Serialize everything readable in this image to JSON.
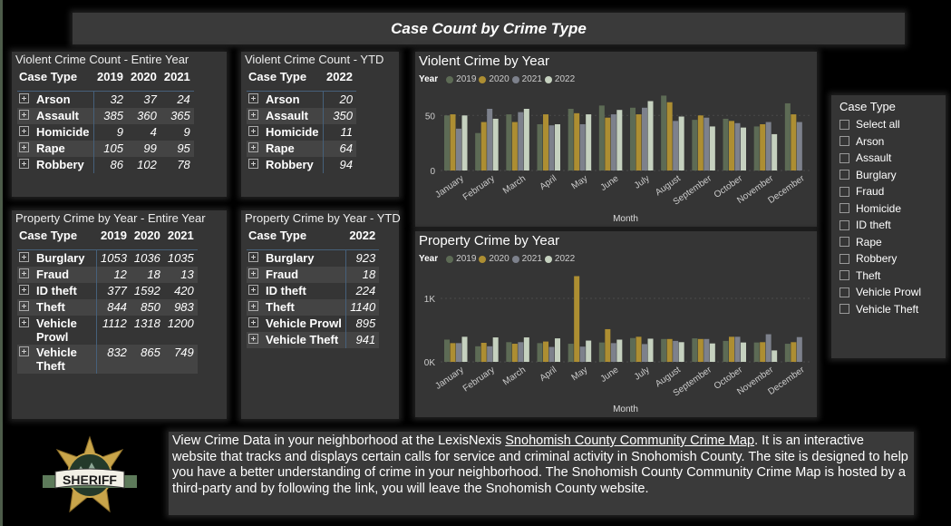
{
  "title": "Case Count by Crime Type",
  "violent_entire": {
    "title": "Violent Crime Count - Entire Year",
    "headers": [
      "Case Type",
      "2019",
      "2020",
      "2021"
    ],
    "rows": [
      [
        "Arson",
        "32",
        "37",
        "24"
      ],
      [
        "Assault",
        "385",
        "360",
        "365"
      ],
      [
        "Homicide",
        "9",
        "4",
        "9"
      ],
      [
        "Rape",
        "105",
        "99",
        "95"
      ],
      [
        "Robbery",
        "86",
        "102",
        "78"
      ]
    ]
  },
  "violent_ytd": {
    "title": "Violent Crime Count - YTD",
    "headers": [
      "Case Type",
      "2022"
    ],
    "rows": [
      [
        "Arson",
        "20"
      ],
      [
        "Assault",
        "350"
      ],
      [
        "Homicide",
        "11"
      ],
      [
        "Rape",
        "64"
      ],
      [
        "Robbery",
        "94"
      ]
    ]
  },
  "property_entire": {
    "title": "Property Crime by Year - Entire Year",
    "headers": [
      "Case Type",
      "2019",
      "2020",
      "2021"
    ],
    "rows": [
      [
        "Burglary",
        "1053",
        "1036",
        "1035"
      ],
      [
        "Fraud",
        "12",
        "18",
        "13"
      ],
      [
        "ID theft",
        "377",
        "1592",
        "420"
      ],
      [
        "Theft",
        "844",
        "850",
        "983"
      ],
      [
        "Vehicle Prowl",
        "1112",
        "1318",
        "1200"
      ],
      [
        "Vehicle Theft",
        "832",
        "865",
        "749"
      ]
    ]
  },
  "property_ytd": {
    "title": "Property Crime by Year - YTD",
    "headers": [
      "Case Type",
      "2022"
    ],
    "rows": [
      [
        "Burglary",
        "923"
      ],
      [
        "Fraud",
        "18"
      ],
      [
        "ID theft",
        "224"
      ],
      [
        "Theft",
        "1140"
      ],
      [
        "Vehicle Prowl",
        "895"
      ],
      [
        "Vehicle Theft",
        "941"
      ]
    ]
  },
  "slicer": {
    "title": "Case Type",
    "options": [
      "Select all",
      "Arson",
      "Assault",
      "Burglary",
      "Fraud",
      "Homicide",
      "ID theft",
      "Rape",
      "Robbery",
      "Theft",
      "Vehicle Prowl",
      "Vehicle Theft"
    ]
  },
  "colors": {
    "2019": "#5d6b55",
    "2020": "#ad8e32",
    "2021": "#7d818c",
    "2022": "#c5d1bf"
  },
  "chart_data": [
    {
      "type": "bar",
      "title": "Violent Crime by Year",
      "legend_title": "Year",
      "legend_position": "top-left",
      "xlabel": "Month",
      "ylabel": "",
      "ylim": [
        0,
        70
      ],
      "yticks": [
        {
          "v": 0,
          "label": "0"
        },
        {
          "v": 50,
          "label": "50"
        }
      ],
      "categories": [
        "January",
        "February",
        "March",
        "April",
        "May",
        "June",
        "July",
        "August",
        "September",
        "October",
        "November",
        "December"
      ],
      "series": [
        {
          "name": "2019",
          "values": [
            50,
            34,
            51,
            42,
            56,
            59,
            57,
            68,
            46,
            47,
            40,
            61
          ]
        },
        {
          "name": "2020",
          "values": [
            51,
            44,
            44,
            51,
            52,
            48,
            51,
            62,
            50,
            45,
            42,
            51
          ]
        },
        {
          "name": "2021",
          "values": [
            38,
            56,
            53,
            41,
            42,
            51,
            57,
            45,
            48,
            43,
            44,
            44
          ]
        },
        {
          "name": "2022",
          "values": [
            50,
            47,
            56,
            42,
            51,
            55,
            63,
            49,
            40,
            39,
            33,
            null
          ]
        }
      ]
    },
    {
      "type": "bar",
      "title": "Property Crime by Year",
      "legend_title": "Year",
      "legend_position": "top-left",
      "xlabel": "Month",
      "ylabel": "",
      "ylim": [
        0,
        1400
      ],
      "yticks": [
        {
          "v": 0,
          "label": "0K"
        },
        {
          "v": 1000,
          "label": "1K"
        }
      ],
      "categories": [
        "January",
        "February",
        "March",
        "April",
        "May",
        "June",
        "July",
        "August",
        "September",
        "October",
        "November",
        "December"
      ],
      "series": [
        {
          "name": "2019",
          "values": [
            350,
            245,
            310,
            295,
            285,
            305,
            375,
            360,
            370,
            330,
            305,
            285
          ]
        },
        {
          "name": "2020",
          "values": [
            295,
            300,
            285,
            320,
            1350,
            515,
            395,
            360,
            360,
            395,
            310,
            310
          ]
        },
        {
          "name": "2021",
          "values": [
            295,
            245,
            310,
            235,
            240,
            295,
            280,
            330,
            360,
            395,
            435,
            390
          ]
        },
        {
          "name": "2022",
          "values": [
            395,
            385,
            385,
            370,
            335,
            350,
            365,
            310,
            290,
            305,
            180,
            null
          ]
        }
      ]
    }
  ],
  "info": {
    "pre": "View Crime Data in your neighborhood at the LexisNexis ",
    "link": "Snohomish County Community Crime Map",
    "post": ". It is an interactive website that tracks and displays certain calls for service and criminal activity in Snohomish County. The site is designed to help you have a better understanding of crime in your neighborhood. The Snohomish County Community Crime Map is hosted by a third-party and by following the link, you will leave the Snohomish County website."
  },
  "logo": {
    "text": "SHERIFF",
    "arc": "SNOHOMISH COUNTY"
  }
}
